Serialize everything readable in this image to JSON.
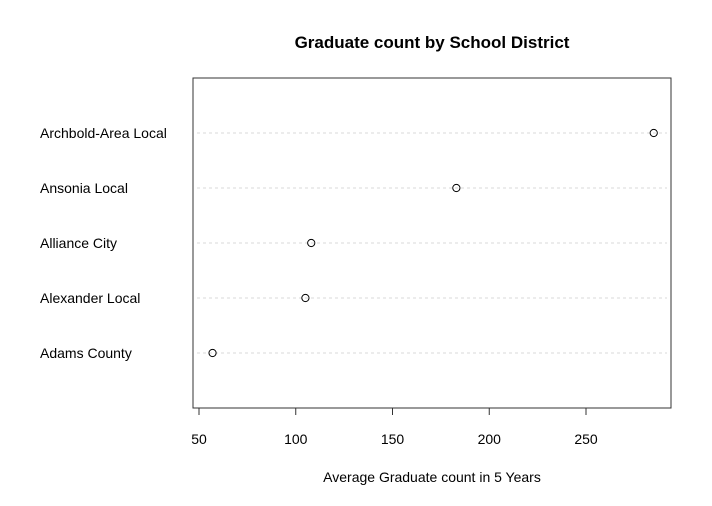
{
  "chart_data": {
    "type": "scatter",
    "title": "Graduate count by School District",
    "xlabel": "Average Graduate count in 5 Years",
    "ylabel": "",
    "categories": [
      "Adams County",
      "Alexander Local",
      "Alliance City",
      "Ansonia Local",
      "Archbold-Area Local"
    ],
    "values": [
      57,
      105,
      108,
      183,
      285
    ],
    "xlim": [
      48,
      294
    ],
    "x_ticks": [
      50,
      100,
      150,
      200,
      250
    ],
    "x_tick_labels": [
      "50",
      "100",
      "150",
      "200",
      "250"
    ],
    "gridlines": "horizontal dashed",
    "marker": "open circle"
  }
}
